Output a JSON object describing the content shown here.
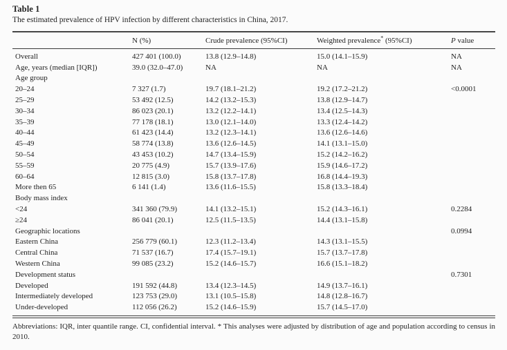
{
  "colors": {
    "background": "#fbfbfb",
    "text": "#222222",
    "rule": "#3a3a3a"
  },
  "page": {
    "title": "Table 1",
    "caption": "The estimated prevalence of HPV infection by different characteristics in China, 2017.",
    "footnote": "Abbreviations: IQR, inter quantile range. CI, confidential interval. * This analyses were adjusted by distribution of age and population according to census in 2010."
  },
  "table": {
    "header": {
      "col_label": "",
      "n": "N (%)",
      "crude": "Crude prevalence (95%CI)",
      "weighted_text": "Weighted prevalence",
      "weighted_sup": "*",
      "weighted_ci": " (95%CI)",
      "p_italic": "P",
      "p_rest": " value"
    },
    "rows": [
      {
        "label": "Overall",
        "n": "427 401 (100.0)",
        "crude": "13.8 (12.9–14.8)",
        "weighted": "15.0 (14.1–15.9)",
        "p": "NA"
      },
      {
        "label": "Age, years (median [IQR])",
        "n": "39.0 (32.0–47.0)",
        "crude": "NA",
        "weighted": "NA",
        "p": "NA"
      },
      {
        "label": "Age group",
        "n": "",
        "crude": "",
        "weighted": "",
        "p": ""
      },
      {
        "label": "20–24",
        "n": "7 327 (1.7)",
        "crude": "19.7 (18.1–21.2)",
        "weighted": "19.2 (17.2–21.2)",
        "p": "<0.0001"
      },
      {
        "label": "25–29",
        "n": "53 492 (12.5)",
        "crude": "14.2 (13.2–15.3)",
        "weighted": "13.8 (12.9–14.7)",
        "p": ""
      },
      {
        "label": "30–34",
        "n": "86 023 (20.1)",
        "crude": "13.2 (12.2–14.1)",
        "weighted": "13.4 (12.5–14.3)",
        "p": ""
      },
      {
        "label": "35–39",
        "n": "77 178 (18.1)",
        "crude": "13.0 (12.1–14.0)",
        "weighted": "13.3 (12.4–14.2)",
        "p": ""
      },
      {
        "label": "40–44",
        "n": "61 423 (14.4)",
        "crude": "13.2 (12.3–14.1)",
        "weighted": "13.6 (12.6–14.6)",
        "p": ""
      },
      {
        "label": "45–49",
        "n": "58 774 (13.8)",
        "crude": "13.6 (12.6–14.5)",
        "weighted": "14.1 (13.1–15.0)",
        "p": ""
      },
      {
        "label": "50–54",
        "n": "43 453 (10.2)",
        "crude": "14.7 (13.4–15.9)",
        "weighted": "15.2 (14.2–16.2)",
        "p": ""
      },
      {
        "label": "55–59",
        "n": "20 775 (4.9)",
        "crude": "15.7 (13.9–17.6)",
        "weighted": "15.9 (14.6–17.2)",
        "p": ""
      },
      {
        "label": "60–64",
        "n": "12 815 (3.0)",
        "crude": "15.8 (13.7–17.8)",
        "weighted": "16.8 (14.4–19.3)",
        "p": ""
      },
      {
        "label": "More then 65",
        "n": "6 141 (1.4)",
        "crude": "13.6 (11.6–15.5)",
        "weighted": "15.8 (13.3–18.4)",
        "p": ""
      },
      {
        "label": "Body mass index",
        "n": "",
        "crude": "",
        "weighted": "",
        "p": ""
      },
      {
        "label": "<24",
        "n": "341 360 (79.9)",
        "crude": "14.1 (13.2–15.1)",
        "weighted": "15.2 (14.3–16.1)",
        "p": "0.2284"
      },
      {
        "label": "≥24",
        "n": "86 041 (20.1)",
        "crude": "12.5 (11.5–13.5)",
        "weighted": "14.4 (13.1–15.8)",
        "p": ""
      },
      {
        "label": "Geographic locations",
        "n": "",
        "crude": "",
        "weighted": "",
        "p": "0.0994"
      },
      {
        "label": "Eastern China",
        "n": "256 779 (60.1)",
        "crude": "12.3 (11.2–13.4)",
        "weighted": "14.3 (13.1–15.5)",
        "p": ""
      },
      {
        "label": "Central China",
        "n": "71 537 (16.7)",
        "crude": "17.4 (15.7–19.1)",
        "weighted": "15.7 (13.7–17.8)",
        "p": ""
      },
      {
        "label": "Western China",
        "n": "99 085 (23.2)",
        "crude": "15.2 (14.6–15.7)",
        "weighted": "16.6 (15.1–18.2)",
        "p": ""
      },
      {
        "label": "Development status",
        "n": "",
        "crude": "",
        "weighted": "",
        "p": "0.7301"
      },
      {
        "label": "Developed",
        "n": "191 592 (44.8)",
        "crude": "13.4 (12.3–14.5)",
        "weighted": "14.9 (13.7–16.1)",
        "p": ""
      },
      {
        "label": "Intermediately developed",
        "n": "123 753 (29.0)",
        "crude": "13.1 (10.5–15.8)",
        "weighted": "14.8 (12.8–16.7)",
        "p": ""
      },
      {
        "label": "Under-developed",
        "n": "112 056 (26.2)",
        "crude": "15.2 (14.6–15.9)",
        "weighted": "15.7 (14.5–17.0)",
        "p": ""
      }
    ]
  }
}
